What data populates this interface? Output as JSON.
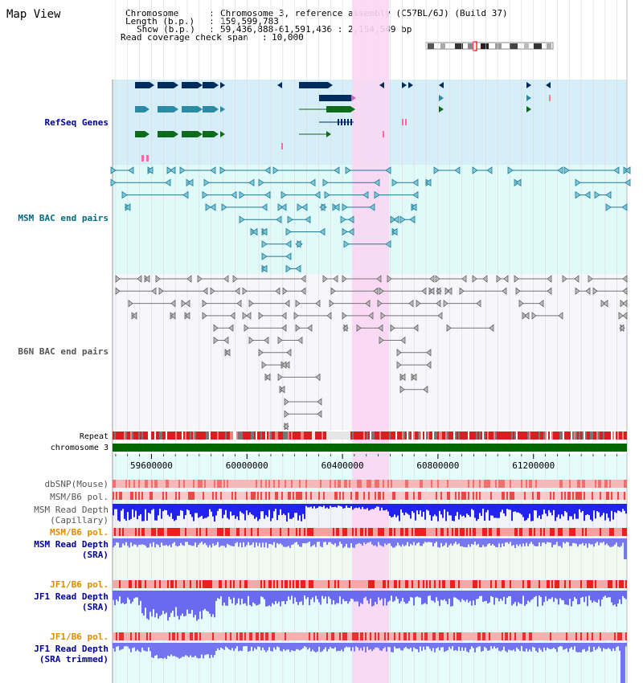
{
  "app": {
    "title": "Map View"
  },
  "info": {
    "chromosome_key": "Chromosome",
    "chromosome_value": "Chromosome 3, reference assembly (C57BL/6J) (Build 37)",
    "length_key": "Length (b.p.)",
    "length_value": "159,599,783",
    "show_key": "Show (b.p.)",
    "show_value": "59,436,888-61,591,436 : 2,154,549 bp",
    "coverage_key": "Read coverage check span",
    "coverage_value": "10,000"
  },
  "tracks": {
    "refseq": "RefSeq Genes",
    "msm_bac": "MSM BAC end pairs",
    "b6n_bac": "B6N BAC end pairs",
    "repeat": "Repeat",
    "chromosome": "chromosome 3",
    "dbsnp": "dbSNP(Mouse)",
    "msm_b6_pol_1": "MSM/B6 pol.",
    "msm_depth_cap": "MSM Read Depth\n(Capillary)",
    "msm_b6_pol_2": "MSM/B6 pol.",
    "msm_depth_sra": "MSM Read Depth\n(SRA)",
    "jf1_b6_pol_1": "JF1/B6 pol.",
    "jf1_depth_sra": "JF1 Read Depth\n(SRA)",
    "jf1_b6_pol_2": "JF1/B6 pol.",
    "jf1_depth_trim": "JF1 Read Depth\n(SRA trimmed)"
  },
  "axis": {
    "ticks": [
      "59600000",
      "60000000",
      "60400000",
      "60800000",
      "61200000"
    ],
    "tick_values": [
      59600000,
      60000000,
      60400000,
      60800000,
      61200000
    ],
    "start": 59436888,
    "end": 61591436
  },
  "highlight": {
    "start": 60440000,
    "end": 60595000,
    "color": "#f9d6f3"
  },
  "colors": {
    "refseq_bg": "#d6eef8",
    "msm_bg": "#e0fafa",
    "b6n_bg": "#f6f6fb",
    "gene_dark": "#002d5e",
    "gene_teal": "#2b8aa4",
    "gene_green": "#0d6b1b",
    "msm_pair": "#1f7a96",
    "b6n_pair": "#666666",
    "depth_blue": "#2222ee",
    "depth_light": "#7777ee",
    "label_blue": "#000099",
    "label_teal": "#006b80",
    "label_orange": "#e08a00",
    "chromosome_bar": "#006600"
  }
}
